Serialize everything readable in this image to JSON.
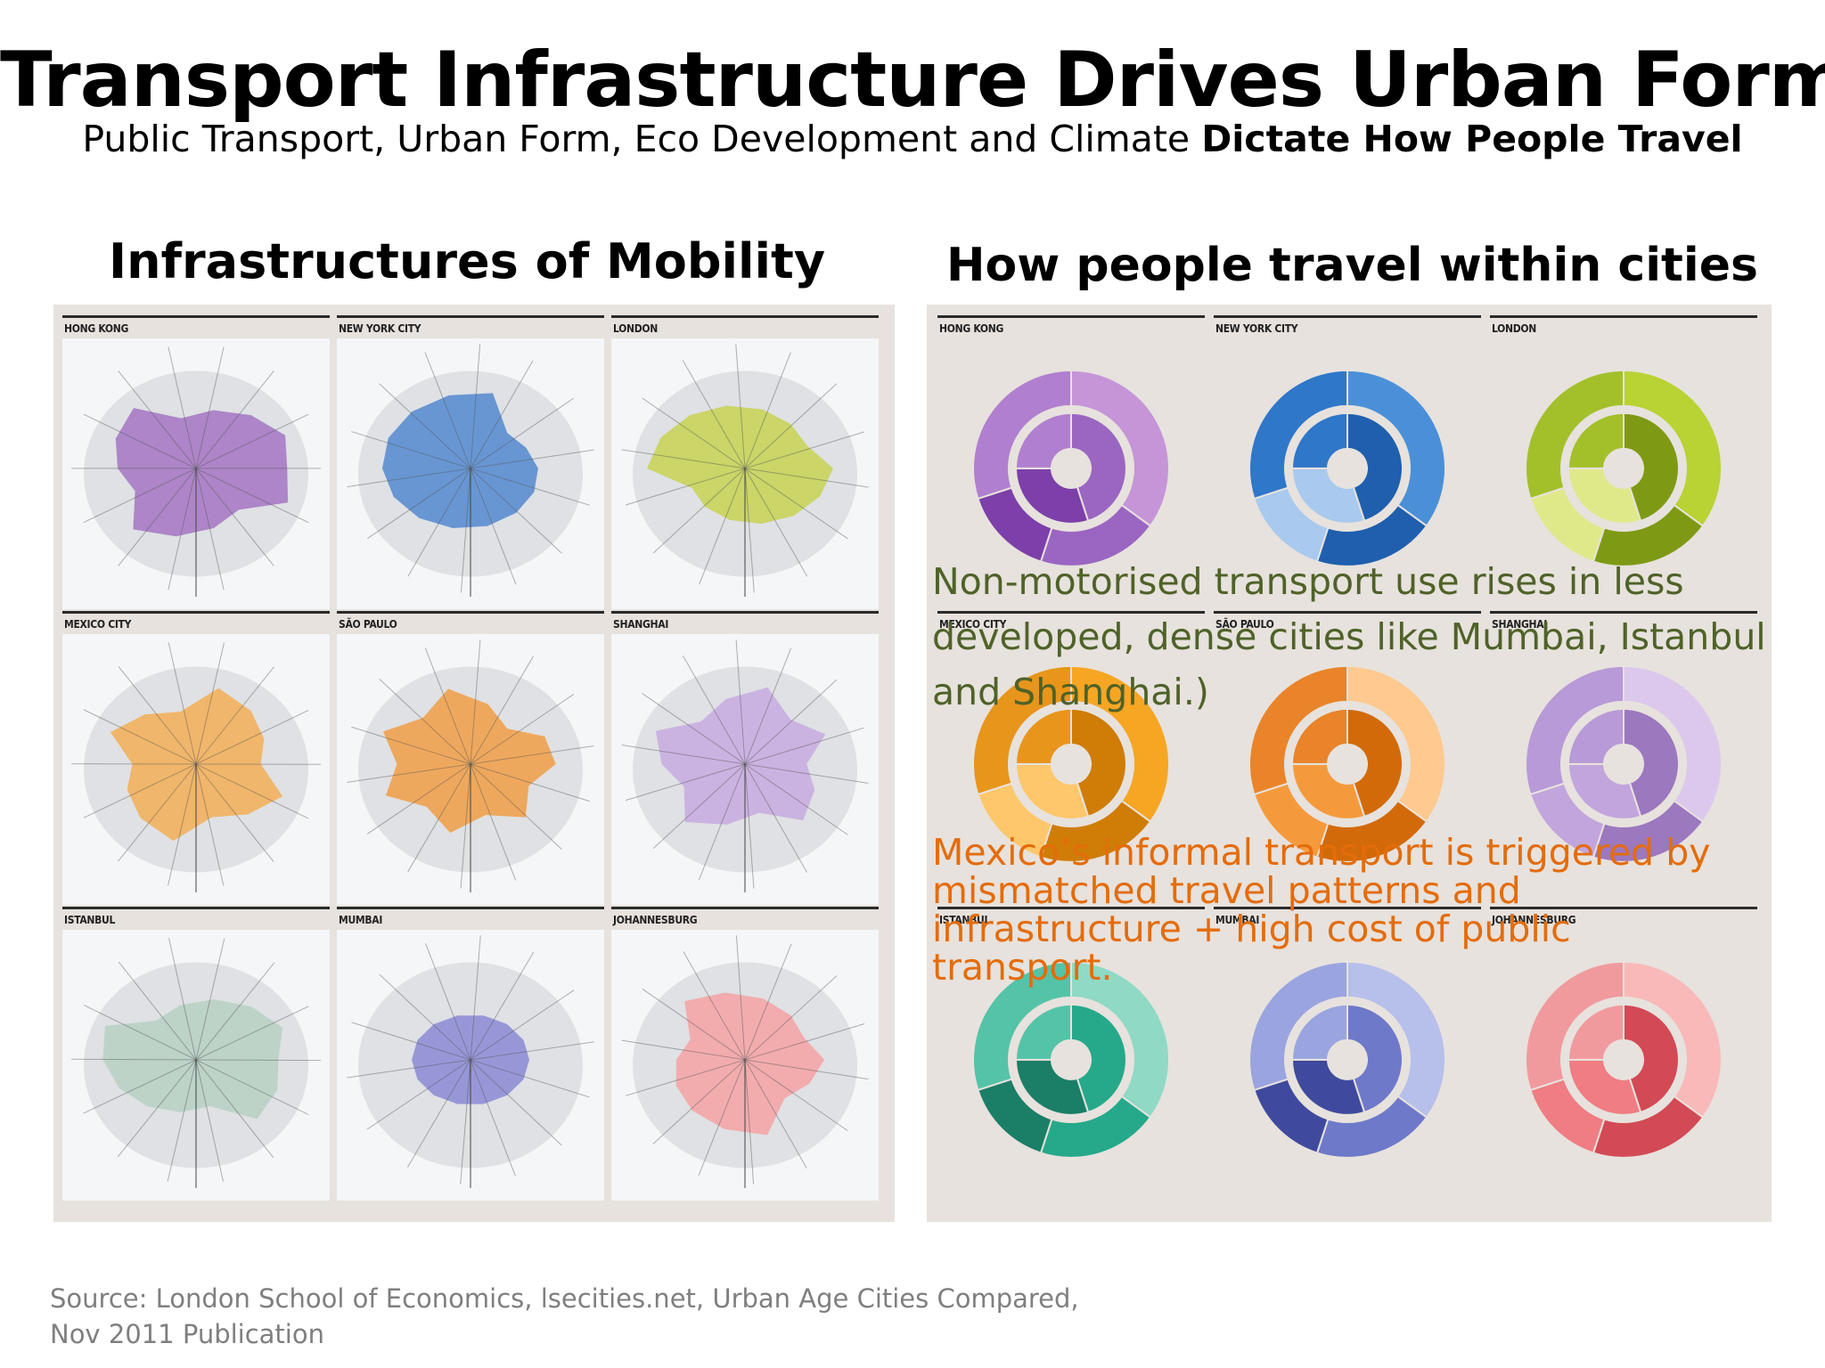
{
  "slide": {
    "title": "Transport Infrastructure Drives Urban Form",
    "subtitle_plain": "Public Transport, Urban Form, Eco Development and Climate ",
    "subtitle_bold": "Dictate How People Travel"
  },
  "left_column": {
    "heading": "Infrastructures of Mobility",
    "cities": [
      "HONG KONG",
      "NEW YORK CITY",
      "LONDON",
      "MEXICO CITY",
      "SÃO PAULO",
      "SHANGHAI",
      "ISTANBUL",
      "MUMBAI",
      "JOHANNESBURG"
    ],
    "colors": [
      "#a77bc4",
      "#5b8ed0",
      "#c9d45a",
      "#f2b15d",
      "#f0a24e",
      "#c9aee0",
      "#b9d1c4",
      "#8f8fd6",
      "#f4a6a6"
    ]
  },
  "right_column": {
    "heading": "How people travel within cities",
    "cities": [
      "HONG KONG",
      "NEW YORK CITY",
      "LONDON",
      "MEXICO CITY",
      "SÃO PAULO",
      "SHANGHAI",
      "ISTANBUL",
      "MUMBAI",
      "JOHANNESBURG"
    ],
    "ring_colors": [
      [
        "#c595d8",
        "#9a66c2",
        "#7d3fa9",
        "#b17fd0"
      ],
      [
        "#4a90d9",
        "#1f5fae",
        "#a9c9ee",
        "#2f77c9"
      ],
      [
        "#b9d334",
        "#7e9a14",
        "#dfe98a",
        "#a3c02b"
      ],
      [
        "#f6a623",
        "#cf7d07",
        "#ffc76b",
        "#e8951b"
      ],
      [
        "#ffc98f",
        "#d26a09",
        "#f59a3c",
        "#e9842a"
      ],
      [
        "#dcc8ec",
        "#9c78bf",
        "#c1a5dc",
        "#b79ad7"
      ],
      [
        "#8fd9c5",
        "#25a98a",
        "#1b7e66",
        "#55c3a7"
      ],
      [
        "#b7bfeb",
        "#6f79c9",
        "#3f4a9e",
        "#9aa4e0"
      ],
      [
        "#f9b9b9",
        "#d24a55",
        "#ef7d83",
        "#f19a9e"
      ]
    ]
  },
  "callouts": {
    "green": "Non-motorised transport use rises in less developed, dense cities like Mumbai, Istanbul and Shanghai.)",
    "orange": "Mexico’s informal transport is triggered by mismatched travel patterns and infrastructure + high cost of public transport."
  },
  "source": {
    "line1": "Source: London School of Economics, lsecities.net, Urban Age Cities Compared,",
    "line2": "Nov 2011 Publication"
  }
}
